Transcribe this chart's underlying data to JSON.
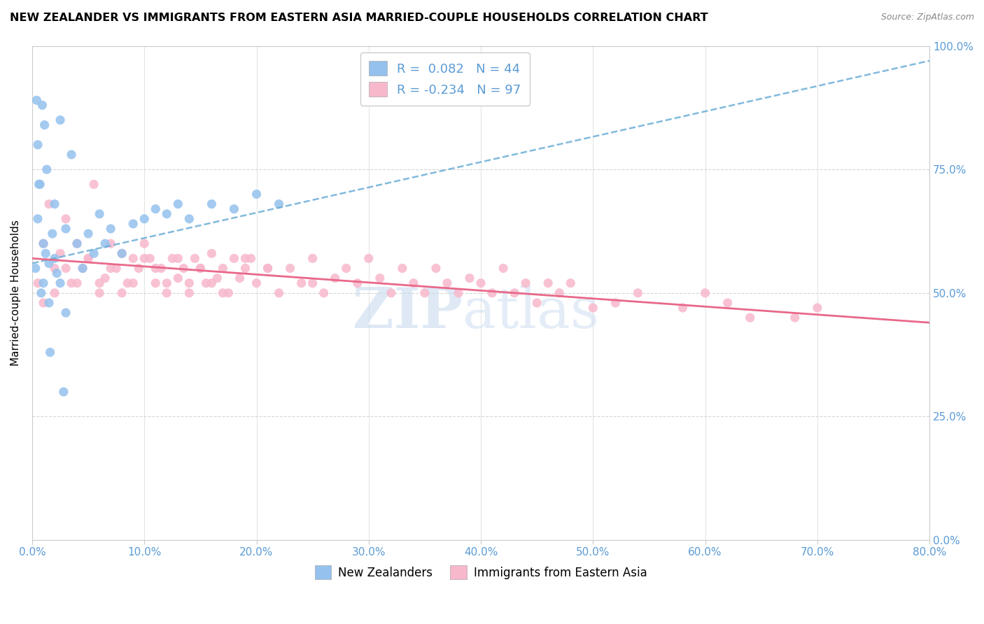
{
  "title": "NEW ZEALANDER VS IMMIGRANTS FROM EASTERN ASIA MARRIED-COUPLE HOUSEHOLDS CORRELATION CHART",
  "source": "Source: ZipAtlas.com",
  "ylabel": "Married-couple Households",
  "x_min": 0.0,
  "x_max": 80.0,
  "y_min": 0.0,
  "y_max": 100.0,
  "x_ticks": [
    0,
    10,
    20,
    30,
    40,
    50,
    60,
    70,
    80
  ],
  "y_ticks": [
    0,
    25,
    50,
    75,
    100
  ],
  "x_tick_labels": [
    "0.0%",
    "10.0%",
    "20.0%",
    "30.0%",
    "40.0%",
    "50.0%",
    "60.0%",
    "70.0%",
    "80.0%"
  ],
  "y_tick_labels": [
    "0.0%",
    "25.0%",
    "50.0%",
    "75.0%",
    "100.0%"
  ],
  "blue_color": "#94C1EE",
  "pink_color": "#F7B8CC",
  "blue_line_color": "#6BAED6",
  "pink_line_color": "#E8698A",
  "R_blue": 0.082,
  "N_blue": 44,
  "R_pink": -0.234,
  "N_pink": 97,
  "legend_label_blue": "New Zealanders",
  "legend_label_pink": "Immigrants from Eastern Asia",
  "watermark_zip": "ZIP",
  "watermark_atlas": "atlas",
  "blue_line_x0": 0.0,
  "blue_line_y0": 56.0,
  "blue_line_x1": 80.0,
  "blue_line_y1": 97.0,
  "pink_line_x0": 0.0,
  "pink_line_y0": 57.0,
  "pink_line_x1": 80.0,
  "pink_line_y1": 44.0,
  "blue_scatter_x": [
    0.3,
    0.5,
    0.5,
    0.7,
    0.8,
    1.0,
    1.0,
    1.2,
    1.3,
    1.5,
    1.5,
    1.8,
    2.0,
    2.0,
    2.2,
    2.5,
    2.5,
    3.0,
    3.0,
    3.5,
    4.0,
    4.5,
    5.0,
    5.5,
    6.0,
    6.5,
    7.0,
    8.0,
    9.0,
    10.0,
    11.0,
    12.0,
    13.0,
    14.0,
    16.0,
    18.0,
    20.0,
    22.0,
    0.4,
    0.6,
    0.9,
    1.1,
    1.6,
    2.8
  ],
  "blue_scatter_y": [
    55.0,
    80.0,
    65.0,
    72.0,
    50.0,
    60.0,
    52.0,
    58.0,
    75.0,
    56.0,
    48.0,
    62.0,
    57.0,
    68.0,
    54.0,
    85.0,
    52.0,
    63.0,
    46.0,
    78.0,
    60.0,
    55.0,
    62.0,
    58.0,
    66.0,
    60.0,
    63.0,
    58.0,
    64.0,
    65.0,
    67.0,
    66.0,
    68.0,
    65.0,
    68.0,
    67.0,
    70.0,
    68.0,
    89.0,
    72.0,
    88.0,
    84.0,
    38.0,
    30.0
  ],
  "pink_scatter_x": [
    0.5,
    1.0,
    1.5,
    2.0,
    2.5,
    3.0,
    3.5,
    4.0,
    4.5,
    5.0,
    5.5,
    6.0,
    6.5,
    7.0,
    7.5,
    8.0,
    8.5,
    9.0,
    9.5,
    10.0,
    10.5,
    11.0,
    11.5,
    12.0,
    12.5,
    13.0,
    13.5,
    14.0,
    14.5,
    15.0,
    15.5,
    16.0,
    16.5,
    17.0,
    17.5,
    18.0,
    18.5,
    19.0,
    19.5,
    20.0,
    21.0,
    22.0,
    23.0,
    24.0,
    25.0,
    26.0,
    27.0,
    28.0,
    29.0,
    30.0,
    31.0,
    32.0,
    33.0,
    34.0,
    35.0,
    36.0,
    37.0,
    38.0,
    39.0,
    40.0,
    41.0,
    42.0,
    43.0,
    44.0,
    45.0,
    46.0,
    47.0,
    48.0,
    50.0,
    52.0,
    54.0,
    58.0,
    60.0,
    62.0,
    64.0,
    68.0,
    70.0,
    1.0,
    2.0,
    3.0,
    4.0,
    5.0,
    6.0,
    7.0,
    8.0,
    9.0,
    10.0,
    11.0,
    12.0,
    13.0,
    14.0,
    15.0,
    16.0,
    17.0,
    19.0,
    21.0,
    25.0
  ],
  "pink_scatter_y": [
    52.0,
    60.0,
    68.0,
    55.0,
    58.0,
    65.0,
    52.0,
    60.0,
    55.0,
    57.0,
    72.0,
    50.0,
    53.0,
    60.0,
    55.0,
    58.0,
    52.0,
    57.0,
    55.0,
    60.0,
    57.0,
    52.0,
    55.0,
    50.0,
    57.0,
    53.0,
    55.0,
    52.0,
    57.0,
    55.0,
    52.0,
    58.0,
    53.0,
    55.0,
    50.0,
    57.0,
    53.0,
    55.0,
    57.0,
    52.0,
    55.0,
    50.0,
    55.0,
    52.0,
    57.0,
    50.0,
    53.0,
    55.0,
    52.0,
    57.0,
    53.0,
    50.0,
    55.0,
    52.0,
    50.0,
    55.0,
    52.0,
    50.0,
    53.0,
    52.0,
    50.0,
    55.0,
    50.0,
    52.0,
    48.0,
    52.0,
    50.0,
    52.0,
    47.0,
    48.0,
    50.0,
    47.0,
    50.0,
    48.0,
    45.0,
    45.0,
    47.0,
    48.0,
    50.0,
    55.0,
    52.0,
    57.0,
    52.0,
    55.0,
    50.0,
    52.0,
    57.0,
    55.0,
    52.0,
    57.0,
    50.0,
    55.0,
    52.0,
    50.0,
    57.0,
    55.0,
    52.0
  ]
}
